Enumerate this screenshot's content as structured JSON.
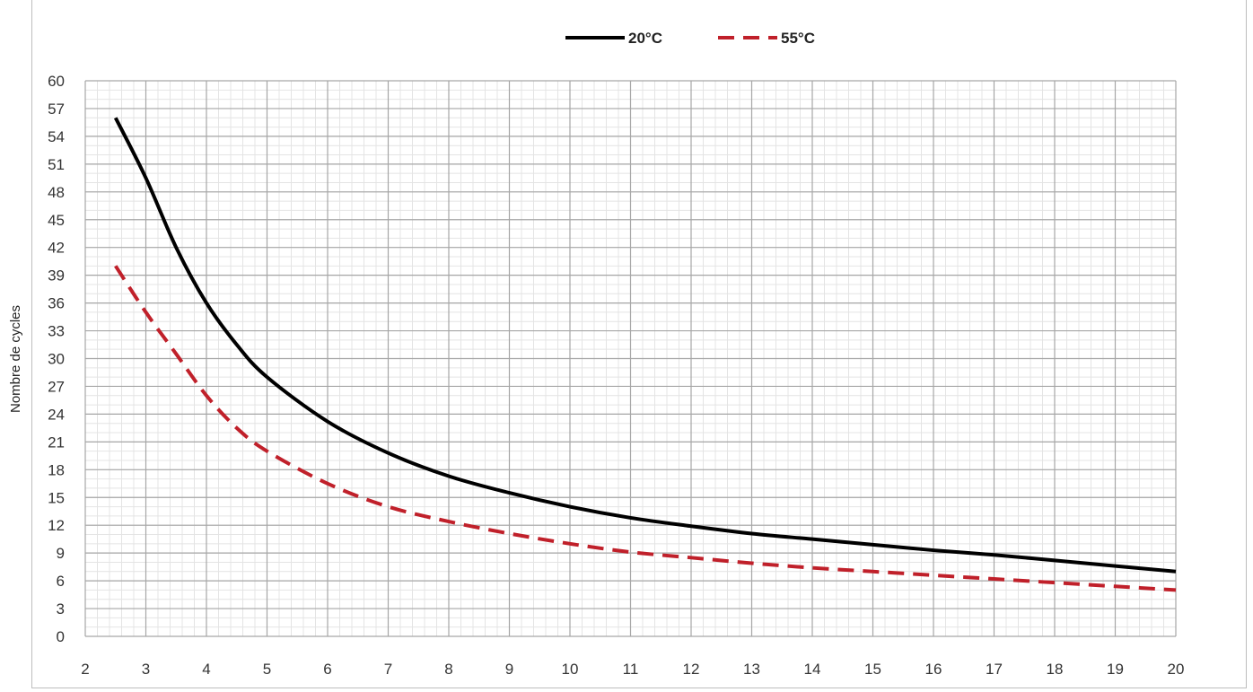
{
  "chart_data": {
    "type": "line",
    "title": "",
    "xlabel": "",
    "ylabel": "Nombre de cycles",
    "xlim": [
      2,
      20
    ],
    "ylim": [
      0,
      60
    ],
    "x_ticks": [
      2,
      3,
      4,
      5,
      6,
      7,
      8,
      9,
      10,
      11,
      12,
      13,
      14,
      15,
      16,
      17,
      18,
      19,
      20
    ],
    "y_ticks": [
      0,
      3,
      6,
      9,
      12,
      15,
      18,
      21,
      24,
      27,
      30,
      33,
      36,
      39,
      42,
      45,
      48,
      51,
      54,
      57,
      60
    ],
    "grid": true,
    "legend_position": "top-center",
    "series": [
      {
        "name": "20°C",
        "color": "#000000",
        "style": "solid",
        "x": [
          2.5,
          3,
          3.5,
          4,
          4.5,
          5,
          6,
          7,
          8,
          9,
          10,
          11,
          12,
          13,
          14,
          15,
          16,
          17,
          18,
          19,
          20
        ],
        "y": [
          56,
          49.5,
          42,
          36,
          31.5,
          28,
          23.2,
          19.8,
          17.3,
          15.5,
          14,
          12.8,
          11.9,
          11.1,
          10.5,
          9.9,
          9.3,
          8.8,
          8.2,
          7.6,
          7
        ]
      },
      {
        "name": "55°C",
        "color": "#c0202a",
        "style": "dashed",
        "x": [
          2.5,
          3,
          3.5,
          4,
          4.5,
          5,
          6,
          7,
          8,
          9,
          10,
          11,
          12,
          13,
          14,
          15,
          16,
          17,
          18,
          19,
          20
        ],
        "y": [
          40,
          35,
          30.5,
          26,
          22.5,
          20,
          16.5,
          14,
          12.4,
          11.1,
          10,
          9.1,
          8.5,
          7.9,
          7.4,
          7,
          6.6,
          6.2,
          5.8,
          5.4,
          5
        ]
      }
    ]
  }
}
